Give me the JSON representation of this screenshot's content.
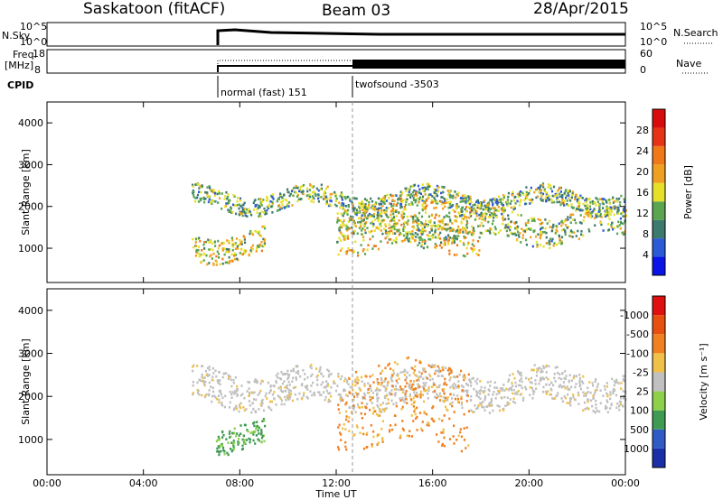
{
  "header": {
    "station": "Saskatoon (fitACF)",
    "beam": "Beam 03",
    "date": "28/Apr/2015"
  },
  "top_panels": {
    "nsky_label": "N.Sky",
    "nsky_ticks": [
      "10^5",
      "10^0"
    ],
    "nsearch_label": "N.Search",
    "freq_label_1": "Freq.",
    "freq_label_2": "[MHz]",
    "freq_ticks": [
      "18",
      "8"
    ],
    "nave_ticks": [
      "60",
      "0"
    ],
    "nave_label": "Nave",
    "cpid_label": "CPID",
    "cpid_segments": [
      {
        "name": "normal (fast) 151",
        "start_h": 6.0
      },
      {
        "name": "twofsound -3503",
        "start_h": 12.0
      }
    ]
  },
  "chart_data": [
    {
      "type": "heatmap",
      "name": "Power",
      "ylabel": "Slant Range [km]",
      "yticks": [
        "1000",
        "2000",
        "3000",
        "4000"
      ],
      "ylim": [
        180,
        4500
      ],
      "xlim_hours": [
        0,
        24
      ],
      "colorbar": {
        "label": "Power [dB]",
        "ticks": [
          "4",
          "8",
          "12",
          "16",
          "20",
          "24",
          "28"
        ],
        "colors": [
          "#0a14e6",
          "#2a5ad6",
          "#3c7a6e",
          "#5aa650",
          "#e6e028",
          "#f0a020",
          "#f07818",
          "#e83218",
          "#d80c0c"
        ]
      },
      "echo_bands": [
        {
          "t0": 6.0,
          "t1": 24.0,
          "r0": 1950,
          "r1": 2400,
          "level": 10
        },
        {
          "t0": 12.0,
          "t1": 18.0,
          "r0": 1000,
          "r1": 2200,
          "level": 16
        },
        {
          "t0": 6.0,
          "t1": 9.0,
          "r0": 800,
          "r1": 1400,
          "level": 14
        },
        {
          "t0": 12.0,
          "t1": 24.0,
          "r0": 1200,
          "r1": 1900,
          "level": 12
        }
      ]
    },
    {
      "type": "heatmap",
      "name": "Velocity",
      "ylabel": "Slant Range [km]",
      "yticks": [
        "1000",
        "2000",
        "3000",
        "4000"
      ],
      "ylim": [
        180,
        4500
      ],
      "xlim_hours": [
        0,
        24
      ],
      "xticks": [
        "00:00",
        "04:00",
        "08:00",
        "12:00",
        "16:00",
        "20:00",
        "00:00"
      ],
      "xlabel": "Time UT",
      "colorbar": {
        "label": "Velocity [m s⁻¹]",
        "ticks": [
          "1000",
          "500",
          "100",
          "25",
          "-25",
          "-100",
          "-500",
          "-1000"
        ],
        "colors": [
          "#1a2ea8",
          "#2f5cc4",
          "#3f9a52",
          "#8dd04a",
          "#c0c0c0",
          "#f0c048",
          "#f08020",
          "#e85010",
          "#e01010"
        ]
      },
      "echo_bands": [
        {
          "t0": 6.0,
          "t1": 24.0,
          "r0": 1800,
          "r1": 2600,
          "velocity": 0
        },
        {
          "t0": 12.0,
          "t1": 17.5,
          "r0": 900,
          "r1": 2800,
          "velocity": -300
        },
        {
          "t0": 7.0,
          "t1": 9.0,
          "r0": 800,
          "r1": 1400,
          "velocity": 120
        }
      ]
    }
  ]
}
